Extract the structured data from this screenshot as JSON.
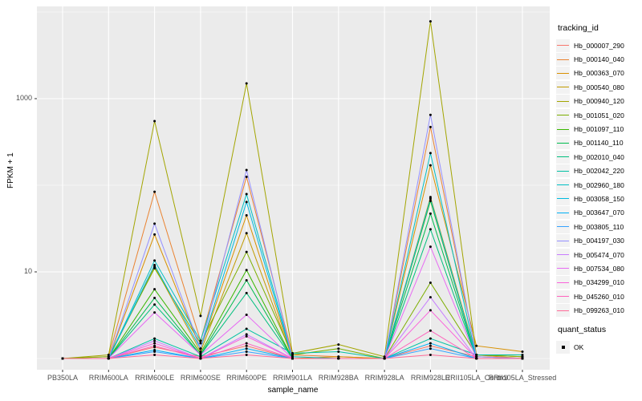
{
  "figure_title": "",
  "legend": {
    "tracking_title": "tracking_id",
    "quant_title": "quant_status",
    "quant_items": [
      {
        "label": "OK",
        "marker": "black-square-point"
      }
    ]
  },
  "colors": {
    "panel_bg": "#EBEBEB",
    "gridline": "#FFFFFF",
    "tick_text": "#4D4D4D",
    "tick_mark": "#333333",
    "legend_key_bg": "#F2F2F2",
    "point": "#000000"
  },
  "chart_data": {
    "type": "line",
    "title": "",
    "xlabel": "sample_name",
    "ylabel": "FPKM + 1",
    "y_scale": "log10",
    "y_tick_labels": [
      "10",
      "1000"
    ],
    "y_major_breaks": [
      10,
      1000
    ],
    "y_minor_breaks": [
      1,
      100,
      10000
    ],
    "ylim": [
      0.75,
      11500
    ],
    "grid": true,
    "legend_position": "right",
    "point_shape": "small-black-dot",
    "quant_status_all": "OK",
    "categories": [
      "PB350LA",
      "RRIM600LA",
      "RRIM600LE",
      "RRIM600SE",
      "RRIM600PE",
      "RRIM901LA",
      "RRIM928BA",
      "RRIM928LA",
      "RRIM928LE",
      "RRII105LA_Control",
      "RRII105LA_Stressed"
    ],
    "series": [
      {
        "name": "Hb_000007_290",
        "color": "#F8766D",
        "values": [
          1.0,
          1.0,
          1.35,
          1.05,
          1.4,
          1.0,
          1.0,
          1.0,
          1.4,
          1.05,
          1.0
        ]
      },
      {
        "name": "Hb_000140_040",
        "color": "#EA8331",
        "values": [
          1.0,
          1.05,
          84,
          1.6,
          125,
          1.1,
          1.05,
          1.0,
          470,
          1.1,
          1.0
        ]
      },
      {
        "name": "Hb_000363_070",
        "color": "#D89000",
        "values": [
          1.0,
          1.0,
          27,
          1.3,
          45,
          1.0,
          1.05,
          1.0,
          170,
          1.4,
          1.2
        ]
      },
      {
        "name": "Hb_000540_080",
        "color": "#C09B00",
        "values": [
          1.0,
          1.0,
          11.5,
          1.2,
          28,
          1.0,
          1.0,
          1.0,
          73,
          1.05,
          1.0
        ]
      },
      {
        "name": "Hb_000940_120",
        "color": "#A3A500",
        "values": [
          1.0,
          1.1,
          550,
          3.1,
          1500,
          1.15,
          1.45,
          1.05,
          7800,
          1.1,
          1.05
        ]
      },
      {
        "name": "Hb_001051_020",
        "color": "#7CAE00",
        "values": [
          1.0,
          1.05,
          11,
          1.5,
          17,
          1.1,
          1.3,
          1.0,
          7.5,
          1.1,
          1.05
        ]
      },
      {
        "name": "Hb_001097_110",
        "color": "#39B600",
        "values": [
          1.0,
          1.0,
          6.3,
          1.15,
          10.5,
          1.0,
          1.0,
          1.0,
          66,
          1.0,
          1.0
        ]
      },
      {
        "name": "Hb_001140_110",
        "color": "#00BB4E",
        "values": [
          1.0,
          1.0,
          5.0,
          1.1,
          8.0,
          1.0,
          1.0,
          1.0,
          47,
          1.0,
          1.0
        ]
      },
      {
        "name": "Hb_002010_040",
        "color": "#00BF7D",
        "values": [
          1.0,
          1.0,
          4.2,
          1.1,
          5.7,
          1.0,
          1.0,
          1.0,
          31,
          1.0,
          1.0
        ]
      },
      {
        "name": "Hb_002042_220",
        "color": "#00C1A3",
        "values": [
          1.0,
          1.0,
          1.7,
          1.05,
          2.2,
          1.15,
          1.2,
          1.0,
          1.7,
          1.1,
          1.1
        ]
      },
      {
        "name": "Hb_002960_180",
        "color": "#00BFC4",
        "values": [
          1.0,
          1.0,
          13.5,
          1.6,
          79,
          1.05,
          1.0,
          1.0,
          235,
          1.0,
          1.0
        ]
      },
      {
        "name": "Hb_003058_150",
        "color": "#00BAE0",
        "values": [
          1.0,
          1.0,
          12,
          1.3,
          64,
          1.0,
          1.0,
          1.0,
          70,
          1.0,
          1.0
        ]
      },
      {
        "name": "Hb_003647_070",
        "color": "#00B0F6",
        "values": [
          1.0,
          1.0,
          1.25,
          1.0,
          1.3,
          1.0,
          1.0,
          1.0,
          1.5,
          1.0,
          1.0
        ]
      },
      {
        "name": "Hb_003805_110",
        "color": "#35A2FF",
        "values": [
          1.0,
          1.0,
          1.2,
          1.0,
          1.2,
          1.0,
          1.0,
          1.0,
          1.3,
          1.0,
          1.0
        ]
      },
      {
        "name": "Hb_004197_030",
        "color": "#9590FF",
        "values": [
          1.0,
          1.0,
          36,
          1.3,
          150,
          1.0,
          1.0,
          1.0,
          650,
          1.05,
          1.0
        ]
      },
      {
        "name": "Hb_005474_070",
        "color": "#C77CFF",
        "values": [
          1.0,
          1.0,
          1.6,
          1.0,
          1.9,
          1.0,
          1.0,
          1.0,
          5.1,
          1.0,
          1.0
        ]
      },
      {
        "name": "Hb_007534_080",
        "color": "#E76BF3",
        "values": [
          1.0,
          1.0,
          3.4,
          1.1,
          3.2,
          1.0,
          1.0,
          1.0,
          19.5,
          1.0,
          1.0
        ]
      },
      {
        "name": "Hb_034299_010",
        "color": "#FA62DB",
        "values": [
          1.0,
          1.0,
          1.5,
          1.0,
          1.8,
          1.0,
          1.0,
          1.0,
          3.6,
          1.0,
          1.0
        ]
      },
      {
        "name": "Hb_045260_010",
        "color": "#FF62BC",
        "values": [
          1.0,
          1.0,
          1.4,
          1.0,
          1.5,
          1.0,
          1.0,
          1.0,
          2.1,
          1.0,
          1.0
        ]
      },
      {
        "name": "Hb_099263_010",
        "color": "#FF6A98",
        "values": [
          1.0,
          1.0,
          1.1,
          1.0,
          1.1,
          1.0,
          1.0,
          1.0,
          1.1,
          1.0,
          1.0
        ]
      }
    ]
  }
}
